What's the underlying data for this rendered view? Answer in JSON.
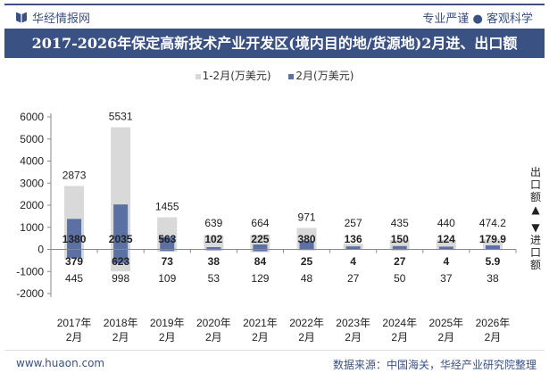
{
  "header": {
    "brand": "华经情报网",
    "slogan": "专业严谨 ● 客观科学",
    "title": "2017-2026年保定高新技术产业开发区(境内目的地/货源地)2月进、出口额"
  },
  "side_labels": {
    "export": "出口额",
    "import": "进口额",
    "export_arrow": "▲",
    "import_arrow": "▼"
  },
  "footer": {
    "website": "www.huaon.com",
    "source": "数据来源：中国海关，华经产业研究院整理"
  },
  "colors": {
    "cumulative": "#d9d9d9",
    "month": "#5b70a3",
    "header": "#3a5183"
  },
  "chart_data": {
    "type": "bar",
    "categories": [
      "2017年\n2月",
      "2018年\n2月",
      "2019年\n2月",
      "2020年\n2月",
      "2021年\n2月",
      "2022年\n2月",
      "2023年\n2月",
      "2024年\n2月",
      "2025年\n2月",
      "2026年\n2月"
    ],
    "ylim": [
      -2000,
      6000
    ],
    "yticks": [
      -2000,
      -1000,
      0,
      1000,
      2000,
      3000,
      4000,
      5000,
      6000
    ],
    "legend": [
      "1-2月(万美元)",
      "2月(万美元)"
    ],
    "legend_position": "top",
    "series": [
      {
        "name": "1-2月(万美元)",
        "direction": "export",
        "values": [
          "2873",
          "5531",
          "1455",
          "639",
          "664",
          "971",
          "257",
          "435",
          "440",
          "474.2"
        ]
      },
      {
        "name": "2月(万美元)",
        "direction": "export",
        "values": [
          "1380",
          "2035",
          "563",
          "102",
          "225",
          "380",
          "136",
          "150",
          "124",
          "179.9"
        ]
      },
      {
        "name": "2月(万美元)",
        "direction": "import",
        "values": [
          "379",
          "623",
          "73",
          "38",
          "84",
          "25",
          "4",
          "27",
          "4",
          "5.9"
        ]
      },
      {
        "name": "1-2月(万美元)",
        "direction": "import",
        "values": [
          "445",
          "998",
          "109",
          "53",
          "129",
          "48",
          "27",
          "50",
          "37",
          "38"
        ]
      }
    ]
  }
}
